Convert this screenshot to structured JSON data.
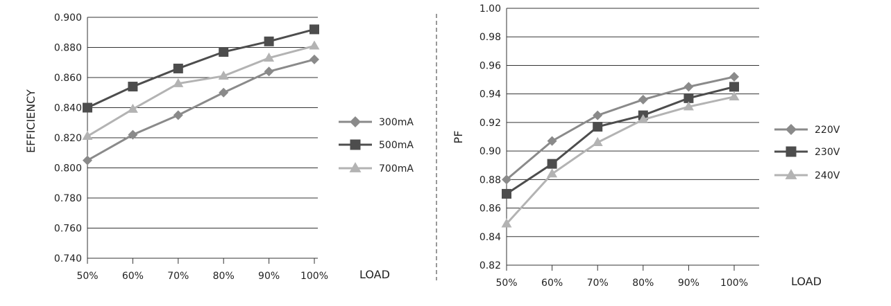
{
  "chart_data": [
    {
      "type": "line",
      "title": "",
      "xlabel": "LOAD",
      "ylabel": "EFFICIENCY",
      "categories": [
        "50%",
        "60%",
        "70%",
        "80%",
        "90%",
        "100%"
      ],
      "ylim": [
        0.74,
        0.9
      ],
      "yticks": [
        "0.740",
        "0.760",
        "0.780",
        "0.800",
        "0.820",
        "0.840",
        "0.860",
        "0.880",
        "0.900"
      ],
      "grid": true,
      "legend_position": "right",
      "series": [
        {
          "name": "300mA",
          "marker": "diamond",
          "color": "#8a8a8a",
          "values": [
            0.805,
            0.822,
            0.835,
            0.85,
            0.864,
            0.872
          ]
        },
        {
          "name": "500mA",
          "marker": "square",
          "color": "#4d4d4d",
          "values": [
            0.84,
            0.854,
            0.866,
            0.877,
            0.884,
            0.892
          ]
        },
        {
          "name": "700mA",
          "marker": "triangle",
          "color": "#b3b3b3",
          "values": [
            0.821,
            0.839,
            0.856,
            0.861,
            0.873,
            0.881
          ]
        }
      ]
    },
    {
      "type": "line",
      "title": "",
      "xlabel": "LOAD",
      "ylabel": "PF",
      "categories": [
        "50%",
        "60%",
        "70%",
        "80%",
        "90%",
        "100%"
      ],
      "ylim": [
        0.82,
        1.0
      ],
      "yticks": [
        "0.82",
        "0.84",
        "0.86",
        "0.88",
        "0.90",
        "0.92",
        "0.94",
        "0.96",
        "0.98",
        "1.00"
      ],
      "grid": true,
      "legend_position": "right",
      "series": [
        {
          "name": "220V",
          "marker": "diamond",
          "color": "#8a8a8a",
          "values": [
            0.88,
            0.907,
            0.925,
            0.936,
            0.945,
            0.952
          ]
        },
        {
          "name": "230V",
          "marker": "square",
          "color": "#4d4d4d",
          "values": [
            0.87,
            0.891,
            0.917,
            0.925,
            0.937,
            0.945
          ]
        },
        {
          "name": "240V",
          "marker": "triangle",
          "color": "#b3b3b3",
          "values": [
            0.849,
            0.884,
            0.906,
            0.922,
            0.931,
            0.938
          ]
        }
      ]
    }
  ]
}
